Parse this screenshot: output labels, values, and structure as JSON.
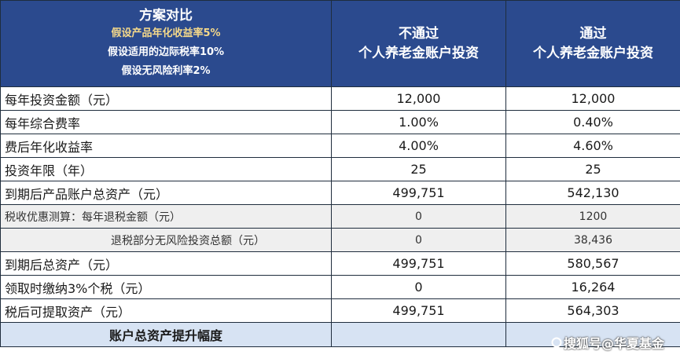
{
  "header": {
    "title": "方案对比",
    "assumption_1": "假设产品年化收益率5%",
    "assumption_2": "假设适用的边际税率10%",
    "assumption_3": "假设无风险利率2%",
    "col_without_line1": "不通过",
    "col_without_line2": "个人养老金账户投资",
    "col_with_line1": "通过",
    "col_with_line2": "个人养老金账户投资"
  },
  "rows": [
    {
      "label": "每年投资金额（元）",
      "without": "12,000",
      "with": "12,000"
    },
    {
      "label": "每年综合费率",
      "without": "1.00%",
      "with": "0.40%"
    },
    {
      "label": "费后年化收益率",
      "without": "4.00%",
      "with": "4.60%"
    },
    {
      "label": "投资年限（年）",
      "without": "25",
      "with": "25"
    },
    {
      "label": "到期后产品账户总资产（元）",
      "without": "499,751",
      "with": "542,130"
    },
    {
      "label": "税收优惠测算：每年退税金额（元）",
      "without": "0",
      "with": "1200"
    },
    {
      "label": "退税部分无风险投资总额（元）",
      "without": "0",
      "with": "38,436"
    },
    {
      "label": "到期后总资产（元）",
      "without": "499,751",
      "with": "580,567"
    },
    {
      "label": "领取时缴纳3%个税（元）",
      "without": "0",
      "with": "16,264"
    },
    {
      "label": "税后可提取资产（元）",
      "without": "499,751",
      "with": "564,303"
    }
  ],
  "footer": {
    "label": "账户总资产提升幅度"
  },
  "watermark": {
    "text": "搜狐号@华夏基金",
    "icon": "sohu-icon"
  },
  "colors": {
    "header_bg": "#2b4a8e",
    "assumption_highlight": "#f5d98a",
    "subrow_bg": "#efefef",
    "footer_bg": "#d7e3f3"
  }
}
